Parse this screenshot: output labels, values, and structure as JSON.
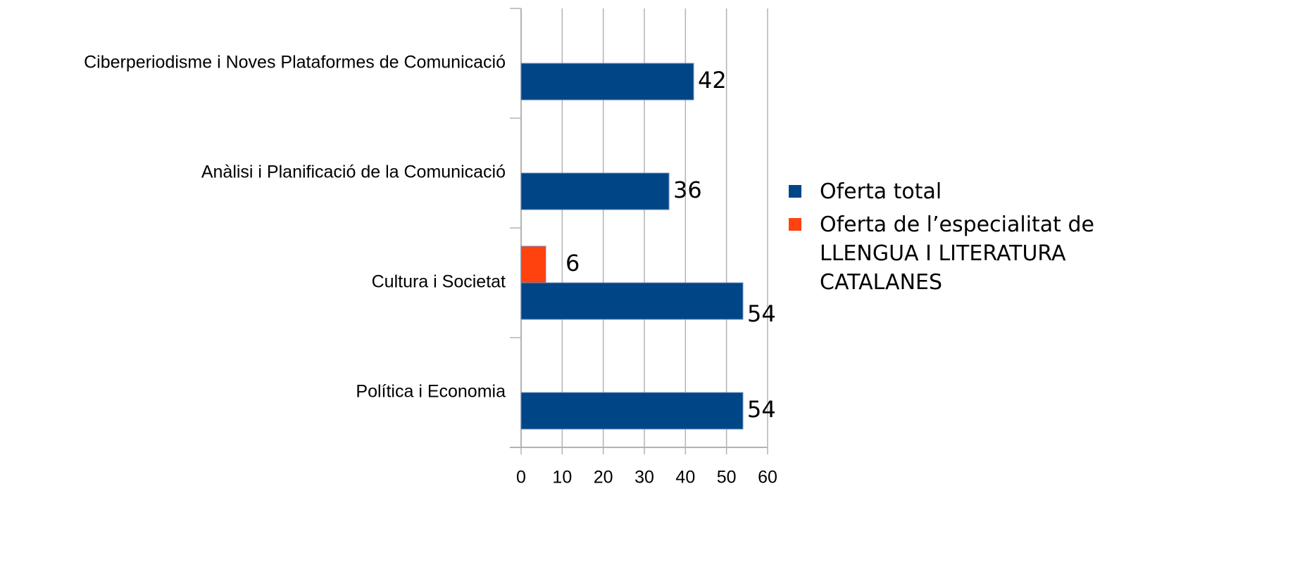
{
  "chart_data": {
    "type": "hbar",
    "categories": [
      "Ciberperiodisme i Noves Plataformes de Comunicació",
      "Anàlisi i Planificació de la Comunicació",
      "Cultura i Societat",
      "Política i Economia"
    ],
    "series": [
      {
        "name": "Oferta de l’especialitat de LLENGUA I LITERATURA CATALANES",
        "color": "#ff420e",
        "values": [
          null,
          null,
          6,
          null
        ]
      },
      {
        "name": "Oferta total",
        "color": "#004586",
        "values": [
          42,
          36,
          54,
          54
        ]
      }
    ],
    "xlim": [
      0,
      60
    ],
    "xticks": [
      0,
      10,
      20,
      30,
      40,
      50,
      60
    ],
    "grid": true,
    "legend": "right"
  }
}
